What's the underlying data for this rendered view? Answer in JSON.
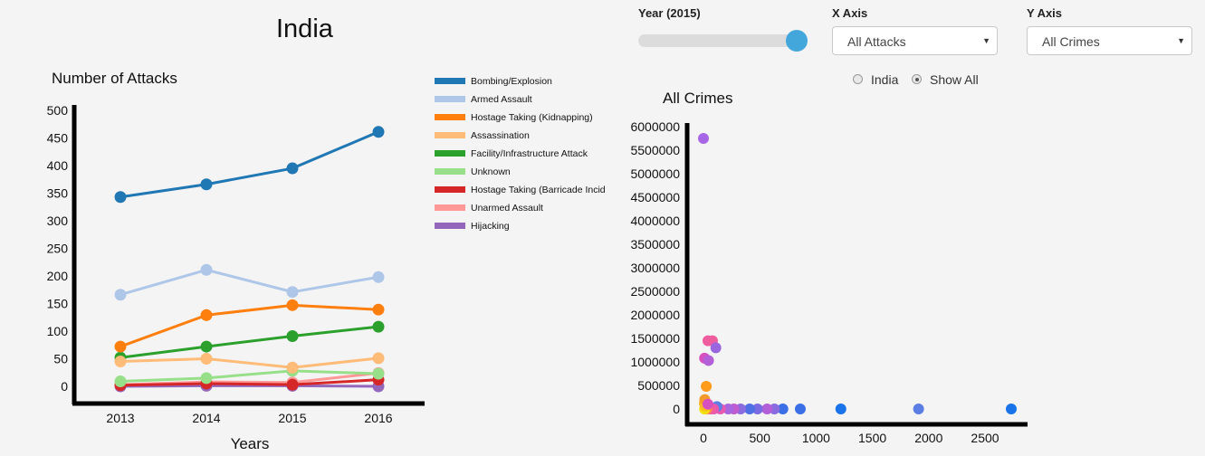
{
  "page": {
    "title": "India"
  },
  "controls": {
    "year_label": "Year (2015)",
    "year_value": 2015,
    "year_range": [
      1970,
      2016
    ],
    "x_axis_label": "X Axis",
    "x_axis_value": "All Attacks",
    "y_axis_label": "Y Axis",
    "y_axis_value": "All Crimes",
    "radio_india": "India",
    "radio_show_all": "Show All",
    "radio_selected": "Show All"
  },
  "chart_data": [
    {
      "type": "line",
      "title": "Number of Attacks",
      "xlabel": "Years",
      "ylabel": "",
      "categories": [
        "2013",
        "2014",
        "2015",
        "2016"
      ],
      "ylim": [
        0,
        500
      ],
      "yticks": [
        0,
        50,
        100,
        150,
        200,
        250,
        300,
        350,
        400,
        450,
        500
      ],
      "legend_position": "right",
      "series": [
        {
          "name": "Bombing/Explosion",
          "color": "#1f77b4",
          "values": [
            343,
            366,
            395,
            461
          ]
        },
        {
          "name": "Armed Assault",
          "color": "#aec7e8",
          "values": [
            166,
            211,
            171,
            198
          ]
        },
        {
          "name": "Hostage Taking (Kidnapping)",
          "color": "#ff7f0e",
          "values": [
            72,
            129,
            147,
            139
          ]
        },
        {
          "name": "Assassination",
          "color": "#ffbb78",
          "values": [
            45,
            50,
            34,
            51
          ]
        },
        {
          "name": "Facility/Infrastructure Attack",
          "color": "#2ca02c",
          "values": [
            52,
            72,
            91,
            108
          ]
        },
        {
          "name": "Unknown",
          "color": "#98df8a",
          "values": [
            9,
            15,
            28,
            23
          ]
        },
        {
          "name": "Hostage Taking (Barricade Incid",
          "color": "#d62728",
          "values": [
            2,
            5,
            3,
            12
          ]
        },
        {
          "name": "Unarmed Assault",
          "color": "#ff9896",
          "values": [
            3,
            8,
            7,
            24
          ]
        },
        {
          "name": "Hijacking",
          "color": "#9467bd",
          "values": [
            0,
            1,
            1,
            0
          ]
        }
      ]
    },
    {
      "type": "scatter",
      "title": "All Crimes",
      "xlabel": "",
      "ylabel": "",
      "xlim": [
        0,
        2800
      ],
      "ylim": [
        0,
        6000000
      ],
      "xticks": [
        0,
        500,
        1000,
        1500,
        2000,
        2500
      ],
      "yticks": [
        0,
        500000,
        1000000,
        1500000,
        2000000,
        2500000,
        3000000,
        3500000,
        4000000,
        4500000,
        5000000,
        5500000,
        6000000
      ],
      "points": [
        {
          "x": 2733,
          "y": 0,
          "color": "#1a73e8"
        },
        {
          "x": 1910,
          "y": 0,
          "color": "#5b7ee5"
        },
        {
          "x": 1220,
          "y": 0,
          "color": "#1a73e8"
        },
        {
          "x": 860,
          "y": 0,
          "color": "#3b6fe6"
        },
        {
          "x": 705,
          "y": 0,
          "color": "#3b6fe6"
        },
        {
          "x": 630,
          "y": 0,
          "color": "#8a6be0"
        },
        {
          "x": 565,
          "y": 0,
          "color": "#b25fd8"
        },
        {
          "x": 480,
          "y": 0,
          "color": "#7b6be2"
        },
        {
          "x": 410,
          "y": 0,
          "color": "#4f6fe4"
        },
        {
          "x": 330,
          "y": 0,
          "color": "#8a6be0"
        },
        {
          "x": 270,
          "y": 0,
          "color": "#c05bd0"
        },
        {
          "x": 220,
          "y": 0,
          "color": "#a766de"
        },
        {
          "x": 150,
          "y": 0,
          "color": "#e858b0"
        },
        {
          "x": 120,
          "y": 50000,
          "color": "#5b7ee5"
        },
        {
          "x": 90,
          "y": 0,
          "color": "#e858b0"
        },
        {
          "x": 60,
          "y": 0,
          "color": "#f05d9f"
        },
        {
          "x": 30,
          "y": 0,
          "color": "#ff8a4a"
        },
        {
          "x": 10,
          "y": 0,
          "color": "#f2e010"
        },
        {
          "x": 15,
          "y": 60000,
          "color": "#f9c21a"
        },
        {
          "x": 8,
          "y": 120000,
          "color": "#f7b72a"
        },
        {
          "x": 12,
          "y": 200000,
          "color": "#f39a2a"
        },
        {
          "x": 40,
          "y": 100000,
          "color": "#d650c0"
        },
        {
          "x": 25,
          "y": 480000,
          "color": "#ff9a1a"
        },
        {
          "x": 10,
          "y": 1080000,
          "color": "#d650c0"
        },
        {
          "x": 45,
          "y": 1030000,
          "color": "#b35fd8"
        },
        {
          "x": 40,
          "y": 1450000,
          "color": "#f05d9f"
        },
        {
          "x": 80,
          "y": 1450000,
          "color": "#f05d9f"
        },
        {
          "x": 110,
          "y": 1300000,
          "color": "#9966e0"
        },
        {
          "x": 0,
          "y": 5750000,
          "color": "#a766e6"
        }
      ]
    }
  ]
}
